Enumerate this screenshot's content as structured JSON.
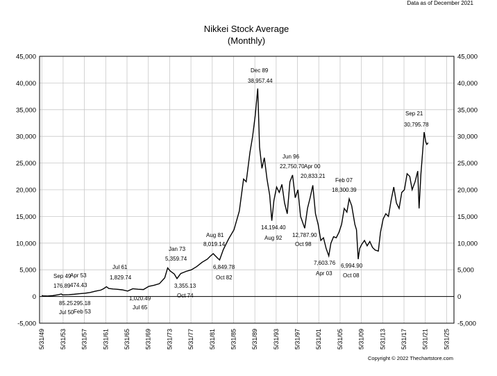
{
  "note": "Data as of December 2021",
  "copyright": "Copyright © 2022 Thechartstore.com",
  "chart_data": {
    "type": "line",
    "title": "Nikkei Stock Average",
    "subtitle": "(Monthly)",
    "xlabel": "",
    "ylabel": "",
    "xlim": [
      1949.0,
      2026.8
    ],
    "ylim": [
      -5000,
      45000
    ],
    "y_ticks": [
      -5000,
      0,
      5000,
      10000,
      15000,
      20000,
      25000,
      30000,
      35000,
      40000,
      45000
    ],
    "y_tick_labels": [
      "-5,000",
      "0",
      "5,000",
      "10,000",
      "15,000",
      "20,000",
      "25,000",
      "30,000",
      "35,000",
      "40,000",
      "45,000"
    ],
    "x_ticks": [
      1949.42,
      1953.42,
      1957.42,
      1961.42,
      1965.42,
      1969.42,
      1973.42,
      1977.42,
      1981.42,
      1985.42,
      1989.42,
      1993.42,
      1997.42,
      2001.42,
      2005.42,
      2009.42,
      2013.42,
      2017.42,
      2021.42,
      2025.42
    ],
    "x_tick_labels": [
      "5/31/49",
      "5/31/53",
      "5/31/57",
      "5/31/61",
      "5/31/65",
      "5/31/69",
      "5/31/73",
      "5/31/77",
      "5/31/81",
      "5/31/85",
      "5/31/89",
      "5/31/93",
      "5/31/97",
      "5/31/01",
      "5/31/05",
      "5/31/09",
      "5/31/13",
      "5/31/17",
      "5/31/21",
      "5/31/25"
    ],
    "grid": true,
    "line_color": "#000000",
    "series": [
      {
        "x": [
          1949.42,
          1949.67,
          1950.5,
          1951.5,
          1952.5,
          1953.1,
          1953.3,
          1954.5,
          1955.5,
          1956.5,
          1957.5,
          1958.5,
          1959.5,
          1960.5,
          1961.0,
          1961.55,
          1962.0,
          1962.8,
          1963.5,
          1964.5,
          1965.54,
          1966.5,
          1967.5,
          1968.5,
          1969.5,
          1970.5,
          1971.5,
          1972.5,
          1973.05,
          1973.5,
          1974.3,
          1974.8,
          1975.5,
          1976.5,
          1977.5,
          1978.5,
          1979.5,
          1980.5,
          1981.0,
          1981.6,
          1982.4,
          1982.8,
          1983.5,
          1984.5,
          1985.5,
          1986.5,
          1987.3,
          1987.8,
          1988.5,
          1989.0,
          1989.5,
          1989.96,
          1990.3,
          1990.75,
          1991.2,
          1991.7,
          1992.2,
          1992.6,
          1993.0,
          1993.5,
          1994.0,
          1994.5,
          1995.0,
          1995.5,
          1996.0,
          1996.5,
          1997.0,
          1997.5,
          1998.0,
          1998.78,
          1999.3,
          1999.8,
          2000.3,
          2000.8,
          2001.3,
          2001.8,
          2002.3,
          2002.8,
          2003.3,
          2003.7,
          2004.2,
          2004.7,
          2005.2,
          2005.7,
          2006.2,
          2006.7,
          2007.13,
          2007.6,
          2008.2,
          2008.5,
          2008.82,
          2009.1,
          2009.5,
          2010.0,
          2010.5,
          2011.0,
          2011.5,
          2012.0,
          2012.6,
          2013.0,
          2013.5,
          2014.0,
          2014.5,
          2015.0,
          2015.5,
          2016.0,
          2016.5,
          2017.0,
          2017.5,
          2018.0,
          2018.5,
          2018.95,
          2019.5,
          2020.0,
          2020.25,
          2020.6,
          2020.95,
          2021.2,
          2021.5,
          2021.7,
          2021.95
        ],
        "values": [
          176.89,
          120,
          85.25,
          160,
          330,
          474.43,
          295.18,
          350,
          420,
          530,
          600,
          750,
          1000,
          1200,
          1450,
          1829.74,
          1500,
          1400,
          1350,
          1250,
          1020.49,
          1450,
          1350,
          1300,
          1900,
          2100,
          2400,
          3500,
          5359.74,
          4800,
          4200,
          3355.13,
          4300,
          4700,
          5000,
          5600,
          6400,
          7000,
          7500,
          8019.14,
          7200,
          6849.78,
          8800,
          10800,
          12500,
          16000,
          22000,
          21500,
          27000,
          30000,
          34000,
          38957.44,
          28000,
          24000,
          26000,
          22000,
          19000,
          14194.4,
          18000,
          20500,
          19500,
          21000,
          17500,
          15500,
          21500,
          22750.7,
          18500,
          20000,
          15000,
          12787.9,
          16500,
          18500,
          20833.21,
          15500,
          13500,
          10500,
          11000,
          9000,
          7603.76,
          10000,
          11200,
          11000,
          12000,
          13500,
          16500,
          15800,
          18300.39,
          17000,
          13500,
          12500,
          6994.9,
          9000,
          9800,
          10500,
          9500,
          10300,
          9200,
          8700,
          8500,
          12000,
          14500,
          15500,
          15000,
          18000,
          20500,
          17500,
          16500,
          19500,
          20000,
          23000,
          22500,
          20000,
          21500,
          23500,
          16500,
          23000,
          27500,
          30795.78,
          29000,
          28500,
          28800
        ]
      }
    ],
    "annotations": [
      {
        "label": "Sep 49",
        "value": "176.89"
      },
      {
        "label": "Jul 50",
        "value": "85.25"
      },
      {
        "label": "Apr 53",
        "value": "474.43"
      },
      {
        "label": "Feb 53",
        "value": "295.18"
      },
      {
        "label": "Jul 61",
        "value": "1,829.74"
      },
      {
        "label": "Jul 65",
        "value": "1,020.49"
      },
      {
        "label": "Jan 73",
        "value": "5,359.74"
      },
      {
        "label": "Oct 74",
        "value": "3,355.13"
      },
      {
        "label": "Aug 81",
        "value": "8,019.14"
      },
      {
        "label": "Oct 82",
        "value": "6,849.78"
      },
      {
        "label": "Dec 89",
        "value": "38,957.44"
      },
      {
        "label": "Aug 92",
        "value": "14,194.40"
      },
      {
        "label": "Jun 96",
        "value": "22,750.70"
      },
      {
        "label": "Apr 00",
        "value": "20,833.21"
      },
      {
        "label": "Oct 98",
        "value": "12,787.90"
      },
      {
        "label": "Apr 03",
        "value": "7,603.76"
      },
      {
        "label": "Feb 07",
        "value": "18,300.39"
      },
      {
        "label": "Oct 08",
        "value": "6,994.90"
      },
      {
        "label": "Sep 21",
        "value": "30,795.78"
      }
    ]
  }
}
